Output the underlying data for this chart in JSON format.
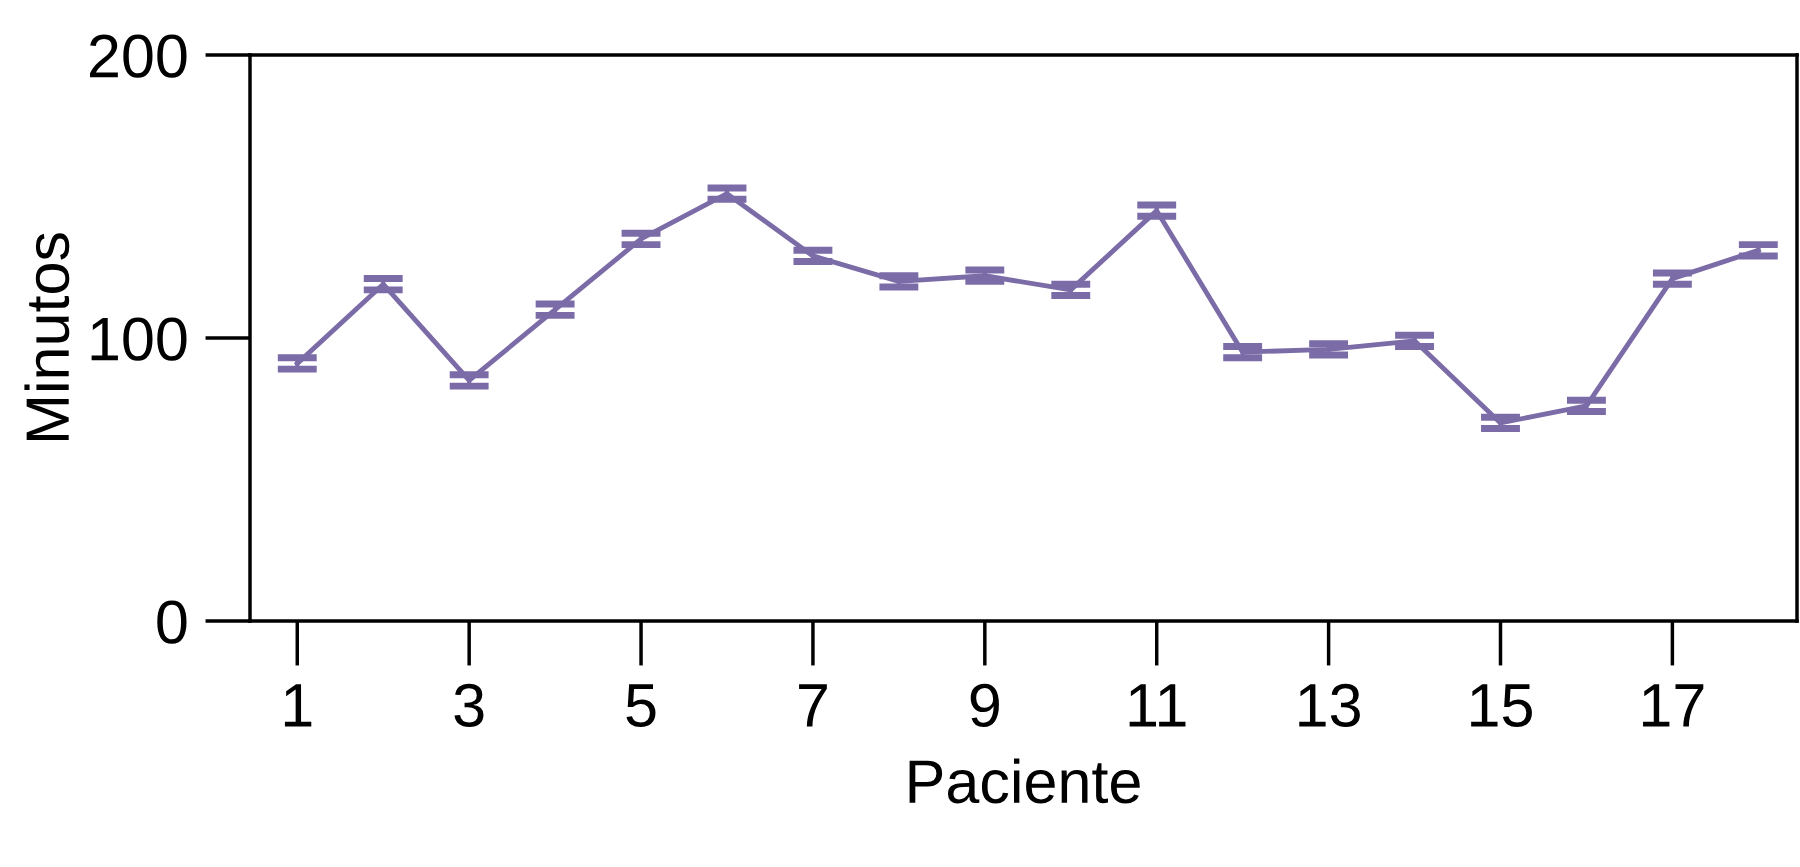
{
  "chart_data": {
    "type": "line",
    "xlabel": "Paciente",
    "ylabel": "Minutos",
    "x": [
      1,
      2,
      3,
      4,
      5,
      6,
      7,
      8,
      9,
      10,
      11,
      12,
      13,
      14,
      15,
      16,
      17,
      18
    ],
    "series": [
      {
        "color": "#7b6ca8",
        "values": [
          91,
          119,
          85,
          110,
          135,
          151,
          129,
          120,
          122,
          117,
          145,
          95,
          96,
          99,
          70,
          76,
          121,
          131
        ],
        "errors": [
          2,
          2,
          2,
          2,
          2,
          2,
          2,
          2,
          2,
          2,
          2,
          2,
          2,
          2,
          2,
          2,
          2,
          2
        ]
      }
    ],
    "xlim": [
      0.45,
      18.45
    ],
    "xticks": [
      1,
      3,
      5,
      7,
      9,
      11,
      13,
      15,
      17
    ],
    "ylim": [
      0,
      200
    ],
    "yticks": [
      0,
      100,
      200
    ],
    "grid": false,
    "legend": false,
    "marker": "none",
    "line_style": "solid"
  }
}
